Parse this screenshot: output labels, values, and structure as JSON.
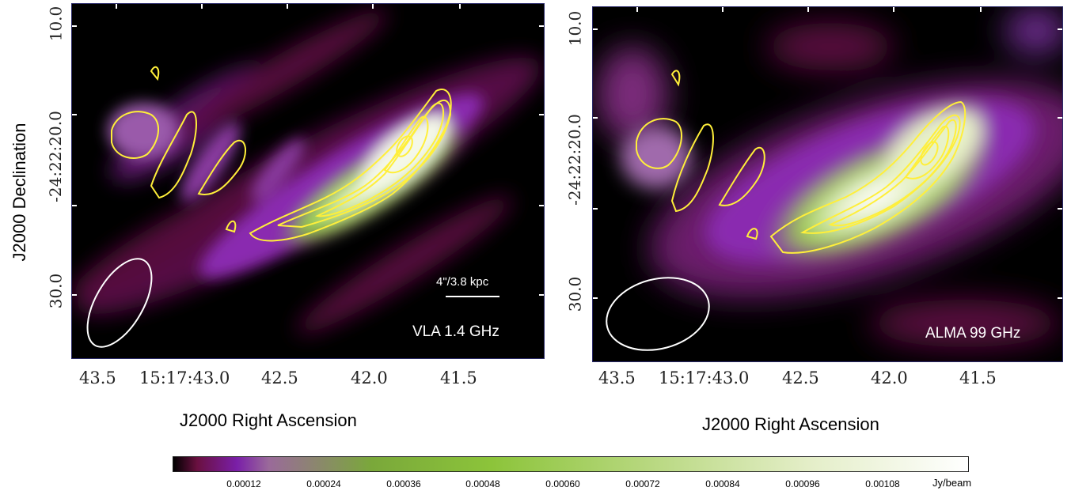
{
  "figure": {
    "ylabel": "J2000 Declination",
    "xlabel": "J2000 Right Ascension",
    "yticks": [
      "10.0",
      "-24:22:20.0",
      "30.0"
    ],
    "xticks": [
      "43.5",
      "15:17:43.0",
      "42.5",
      "42.0",
      "41.5"
    ]
  },
  "left_panel": {
    "label": "VLA 1.4 GHz",
    "scalebar": "4\"/3.8 kpc"
  },
  "right_panel": {
    "label": "ALMA 99 GHz"
  },
  "colorbar": {
    "ticks": [
      "0.00012",
      "0.00024",
      "0.00036",
      "0.00048",
      "0.00060",
      "0.00072",
      "0.00084",
      "0.00096",
      "0.00108"
    ],
    "unit": "Jy/beam",
    "colors": [
      "#000000",
      "#8b1a5a",
      "#7a1fa8",
      "#9a6a9a",
      "#6aa82a",
      "#8cc43a",
      "#d8e8b0",
      "#ffffff"
    ]
  }
}
